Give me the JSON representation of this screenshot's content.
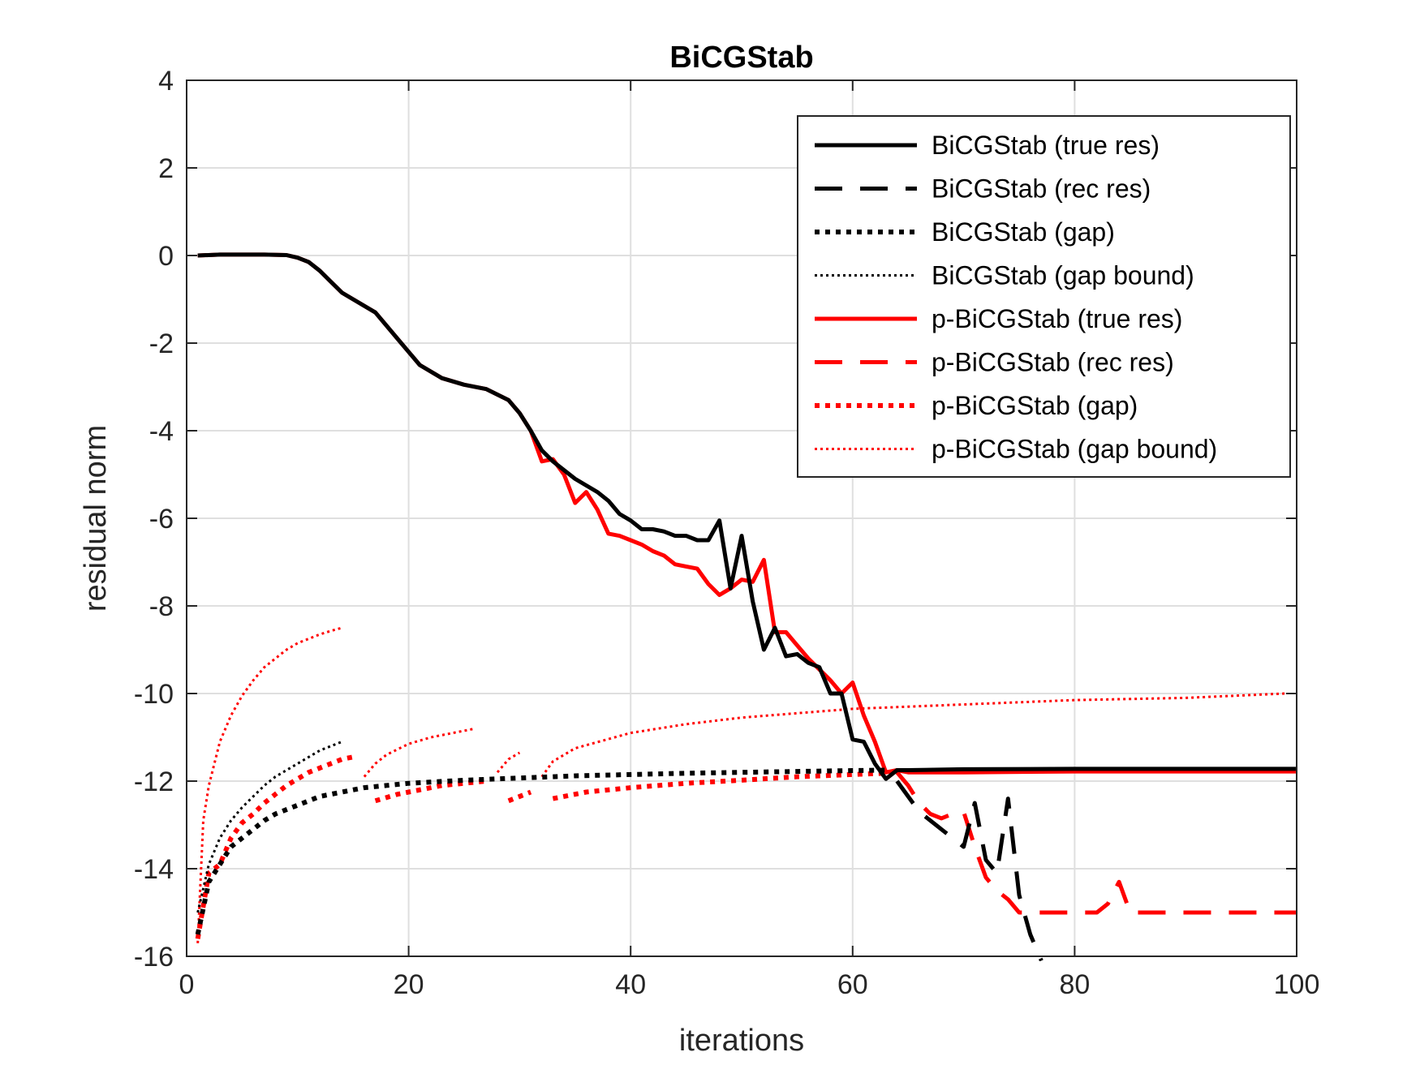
{
  "chart_data": {
    "type": "line",
    "title": "BiCGStab",
    "xlabel": "iterations",
    "ylabel": "residual norm",
    "xlim": [
      0,
      100
    ],
    "ylim": [
      -16,
      4
    ],
    "xticks": [
      "0",
      "20",
      "40",
      "60",
      "80",
      "100"
    ],
    "yticks": [
      "4",
      "2",
      "0",
      "-2",
      "-4",
      "-6",
      "-8",
      "-10",
      "-12",
      "-14",
      "-16"
    ],
    "grid": true,
    "legend_position": "top-right",
    "series": [
      {
        "name": "BiCGStab (true res)",
        "color": "#000000",
        "style": "solid",
        "width": 5,
        "x": [
          1,
          3,
          5,
          7,
          9,
          10,
          11,
          12,
          13,
          14,
          15,
          17,
          19,
          21,
          23,
          25,
          27,
          29,
          30,
          31,
          32,
          33,
          34,
          35,
          36,
          37,
          38,
          39,
          40,
          41,
          42,
          43,
          44,
          45,
          46,
          47,
          48,
          49,
          50,
          51,
          52,
          53,
          54,
          55,
          56,
          57,
          58,
          59,
          60,
          61,
          62,
          63,
          64,
          65,
          70,
          80,
          90,
          100
        ],
        "y": [
          0.0,
          0.02,
          0.02,
          0.02,
          0.01,
          -0.05,
          -0.15,
          -0.35,
          -0.6,
          -0.85,
          -1.0,
          -1.3,
          -1.9,
          -2.5,
          -2.8,
          -2.95,
          -3.05,
          -3.3,
          -3.6,
          -4.0,
          -4.45,
          -4.7,
          -4.9,
          -5.1,
          -5.25,
          -5.4,
          -5.6,
          -5.9,
          -6.05,
          -6.25,
          -6.25,
          -6.3,
          -6.4,
          -6.4,
          -6.5,
          -6.5,
          -6.05,
          -7.6,
          -6.4,
          -7.9,
          -9.0,
          -8.5,
          -9.15,
          -9.1,
          -9.3,
          -9.4,
          -10.0,
          -10.0,
          -11.05,
          -11.1,
          -11.6,
          -11.95,
          -11.75,
          -11.75,
          -11.73,
          -11.72,
          -11.72,
          -11.72
        ]
      },
      {
        "name": "BiCGStab (rec res)",
        "color": "#000000",
        "style": "dashed",
        "width": 5,
        "x": [
          64,
          66,
          68,
          70,
          71,
          72,
          73,
          74,
          75,
          76,
          77
        ],
        "y": [
          -12.0,
          -12.7,
          -13.1,
          -13.5,
          -12.5,
          -13.8,
          -14.1,
          -12.4,
          -14.6,
          -15.5,
          -16.1
        ]
      },
      {
        "name": "BiCGStab (gap)",
        "color": "#000000",
        "style": "dotted",
        "width": 6,
        "x": [
          1,
          2,
          3,
          4,
          5,
          6,
          7,
          8,
          10,
          12,
          14,
          16,
          20,
          25,
          30,
          35,
          40,
          45,
          50,
          55,
          60,
          63
        ],
        "y": [
          -15.5,
          -14.3,
          -13.9,
          -13.5,
          -13.3,
          -13.1,
          -12.9,
          -12.75,
          -12.55,
          -12.35,
          -12.25,
          -12.15,
          -12.05,
          -11.98,
          -11.93,
          -11.88,
          -11.85,
          -11.82,
          -11.8,
          -11.78,
          -11.76,
          -11.75
        ]
      },
      {
        "name": "BiCGStab (gap bound)",
        "color": "#000000",
        "style": "fine-dotted",
        "width": 3,
        "x": [
          1,
          2,
          3,
          4,
          5,
          6,
          7,
          8,
          10,
          12,
          14
        ],
        "y": [
          -15.0,
          -13.9,
          -13.3,
          -12.9,
          -12.6,
          -12.35,
          -12.1,
          -11.9,
          -11.6,
          -11.3,
          -11.1
        ]
      },
      {
        "name": "p-BiCGStab (true res)",
        "color": "#ff0000",
        "style": "solid",
        "width": 5,
        "x": [
          1,
          3,
          5,
          7,
          9,
          10,
          11,
          12,
          13,
          14,
          15,
          17,
          19,
          21,
          23,
          25,
          27,
          29,
          30,
          31,
          32,
          33,
          34,
          35,
          36,
          37,
          38,
          39,
          40,
          41,
          42,
          43,
          44,
          45,
          46,
          47,
          48,
          49,
          50,
          51,
          52,
          53,
          54,
          55,
          56,
          57,
          58,
          59,
          60,
          61,
          62,
          63,
          64,
          65,
          70,
          80,
          90,
          100
        ],
        "y": [
          0.0,
          0.02,
          0.02,
          0.02,
          0.01,
          -0.05,
          -0.15,
          -0.35,
          -0.6,
          -0.85,
          -1.0,
          -1.3,
          -1.9,
          -2.5,
          -2.8,
          -2.95,
          -3.05,
          -3.3,
          -3.6,
          -4.0,
          -4.7,
          -4.65,
          -5.0,
          -5.65,
          -5.4,
          -5.8,
          -6.35,
          -6.4,
          -6.5,
          -6.6,
          -6.75,
          -6.85,
          -7.05,
          -7.1,
          -7.15,
          -7.5,
          -7.75,
          -7.6,
          -7.4,
          -7.45,
          -6.95,
          -8.6,
          -8.6,
          -8.9,
          -9.2,
          -9.45,
          -9.7,
          -10.0,
          -9.75,
          -10.5,
          -11.1,
          -11.8,
          -11.75,
          -11.8,
          -11.8,
          -11.78,
          -11.78,
          -11.78
        ]
      },
      {
        "name": "p-BiCGStab (rec res)",
        "color": "#ff0000",
        "style": "dashed",
        "width": 5,
        "x": [
          64,
          65,
          66,
          67,
          68,
          69,
          70,
          71,
          72,
          73,
          74,
          75,
          76,
          78,
          80,
          82,
          83,
          84,
          85,
          86,
          88,
          90,
          95,
          100
        ],
        "y": [
          -11.8,
          -12.1,
          -12.5,
          -12.75,
          -12.85,
          -12.75,
          -12.7,
          -13.5,
          -14.2,
          -14.5,
          -14.7,
          -15.0,
          -15.0,
          -15.0,
          -15.0,
          -15.0,
          -14.8,
          -14.3,
          -15.0,
          -15.0,
          -15.0,
          -15.0,
          -15.0,
          -15.0
        ]
      },
      {
        "name": "p-BiCGStab (gap)",
        "color": "#ff0000",
        "style": "dotted",
        "width": 6,
        "segments": [
          {
            "x": [
              1,
              2,
              3,
              4,
              5,
              6,
              7,
              8,
              9,
              10,
              11,
              12,
              13,
              14,
              15
            ],
            "y": [
              -15.6,
              -14.1,
              -13.9,
              -13.3,
              -12.95,
              -12.75,
              -12.5,
              -12.3,
              -12.1,
              -11.95,
              -11.8,
              -11.7,
              -11.6,
              -11.5,
              -11.45
            ]
          },
          {
            "x": [
              17,
              19,
              21,
              23,
              25,
              27
            ],
            "y": [
              -12.45,
              -12.3,
              -12.2,
              -12.1,
              -12.05,
              -12.0
            ]
          },
          {
            "x": [
              29,
              30,
              31
            ],
            "y": [
              -12.45,
              -12.35,
              -12.25
            ]
          },
          {
            "x": [
              33,
              36,
              40,
              45,
              50,
              55,
              60,
              63
            ],
            "y": [
              -12.4,
              -12.25,
              -12.15,
              -12.05,
              -11.98,
              -11.9,
              -11.85,
              -11.82
            ]
          }
        ]
      },
      {
        "name": "p-BiCGStab (gap bound)",
        "color": "#ff0000",
        "style": "fine-dotted",
        "width": 3,
        "segments": [
          {
            "x": [
              1,
              1.5,
              2,
              3,
              4,
              5,
              6,
              7,
              8,
              9,
              10,
              11,
              12,
              13,
              14
            ],
            "y": [
              -15.7,
              -12.9,
              -12.1,
              -11.1,
              -10.5,
              -10.05,
              -9.7,
              -9.4,
              -9.2,
              -9.0,
              -8.85,
              -8.75,
              -8.65,
              -8.57,
              -8.5
            ]
          },
          {
            "x": [
              16,
              17,
              18,
              20,
              22,
              24,
              26
            ],
            "y": [
              -11.9,
              -11.6,
              -11.4,
              -11.15,
              -11.0,
              -10.9,
              -10.8
            ]
          },
          {
            "x": [
              28,
              29,
              30
            ],
            "y": [
              -11.8,
              -11.5,
              -11.35
            ]
          },
          {
            "x": [
              32,
              33,
              35,
              40,
              45,
              50,
              55,
              60,
              65,
              70,
              80,
              90,
              99
            ],
            "y": [
              -11.9,
              -11.55,
              -11.25,
              -10.9,
              -10.7,
              -10.55,
              -10.45,
              -10.35,
              -10.3,
              -10.25,
              -10.15,
              -10.1,
              -10.0
            ]
          }
        ]
      }
    ]
  }
}
